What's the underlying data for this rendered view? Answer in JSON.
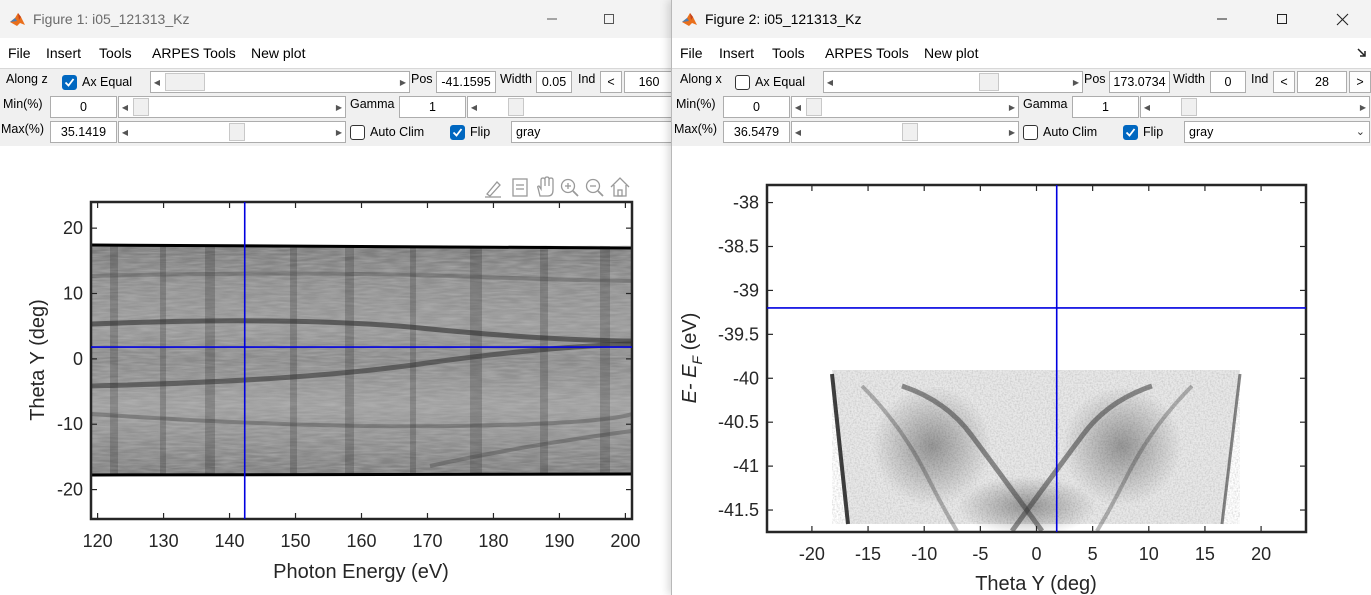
{
  "windows": [
    {
      "title": "Figure 1: i05_121313_Kz",
      "menus": [
        "File",
        "Insert",
        "Tools",
        "ARPES Tools",
        "New plot"
      ],
      "controls": {
        "along_label": "Along z",
        "ax_equal_label": "Ax Equal",
        "ax_equal_checked": true,
        "pos_label": "Pos",
        "pos_value": "-41.1595",
        "width_label": "Width",
        "width_value": "0.05",
        "ind_label": "Ind",
        "prev_label": "<",
        "ind_value": "160",
        "min_label": "Min(%)",
        "min_value": "0",
        "max_label": "Max(%)",
        "max_value": "35.1419",
        "gamma_label": "Gamma",
        "gamma_value": "1",
        "auto_clim_label": "Auto Clim",
        "auto_clim_checked": false,
        "flip_label": "Flip",
        "flip_checked": true,
        "colormap_value": "gray"
      },
      "plot": {
        "xlabel": "Photon Energy (eV)",
        "ylabel": "Theta Y (deg)",
        "xlim": [
          119,
          201
        ],
        "ylim": [
          -24.5,
          24
        ],
        "xticks": [
          120,
          130,
          140,
          150,
          160,
          170,
          180,
          190,
          200
        ],
        "yticks": [
          20,
          10,
          0,
          -10,
          -20
        ],
        "cursor": {
          "x": 142.3,
          "y": 1.8
        },
        "cursor_color": "#0000e0"
      }
    },
    {
      "title": "Figure 2: i05_121313_Kz",
      "menus": [
        "File",
        "Insert",
        "Tools",
        "ARPES Tools",
        "New plot"
      ],
      "controls": {
        "along_label": "Along x",
        "ax_equal_label": "Ax Equal",
        "ax_equal_checked": false,
        "pos_label": "Pos",
        "pos_value": "173.0734",
        "width_label": "Width",
        "width_value": "0",
        "ind_label": "Ind",
        "prev_label": "<",
        "ind_value": "28",
        "next_label": ">",
        "min_label": "Min(%)",
        "min_value": "0",
        "max_label": "Max(%)",
        "max_value": "36.5479",
        "gamma_label": "Gamma",
        "gamma_value": "1",
        "auto_clim_label": "Auto Clim",
        "auto_clim_checked": false,
        "flip_label": "Flip",
        "flip_checked": true,
        "colormap_value": "gray"
      },
      "plot": {
        "xlabel": "Theta Y (deg)",
        "ylabel_main": "E- E",
        "ylabel_sub": "F",
        "ylabel_unit": " (eV)",
        "xlim": [
          -24,
          24
        ],
        "ylim": [
          -41.75,
          -37.8
        ],
        "xticks": [
          -20,
          -15,
          -10,
          -5,
          0,
          5,
          10,
          15,
          20
        ],
        "yticks": [
          -38,
          -38.5,
          -39,
          -39.5,
          -40,
          -40.5,
          -41,
          -41.5
        ],
        "cursor": {
          "x": 1.8,
          "y": -39.2
        },
        "cursor_color": "#0000e0"
      }
    }
  ],
  "icons": {
    "app": "matlab-logo-icon",
    "axes_toolbar": [
      "edit-plot-icon",
      "data-tips-icon",
      "pan-icon",
      "zoom-in-icon",
      "zoom-out-icon",
      "restore-view-icon"
    ]
  }
}
